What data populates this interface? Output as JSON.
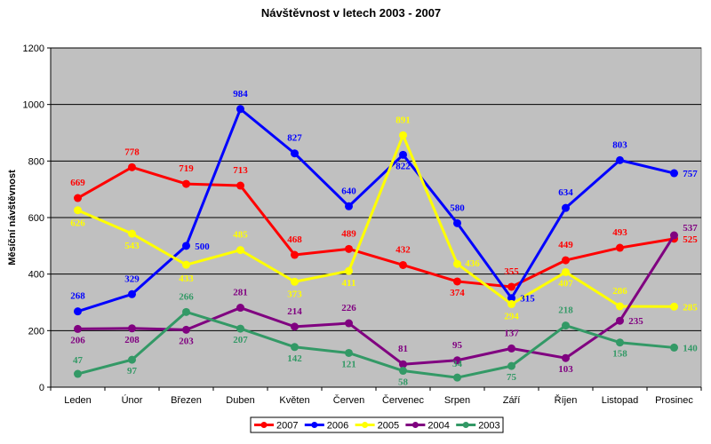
{
  "chart_data": {
    "type": "line",
    "title": "Návštěvnost v letech 2003  - 2007",
    "xlabel": "",
    "ylabel": "Měsíční návštěvnost",
    "ylim": [
      0,
      1200
    ],
    "yticks": [
      "0",
      "200",
      "400",
      "600",
      "800",
      "1000",
      "1200"
    ],
    "grid": true,
    "legend_position": "bottom",
    "categories": [
      "Leden",
      "Únor",
      "Březen",
      "Duben",
      "Květen",
      "Červen",
      "Červenec",
      "Srpen",
      "Září",
      "Říjen",
      "Listopad",
      "Prosinec"
    ],
    "series": [
      {
        "name": "2007",
        "color": "#ff0000",
        "values": [
          669,
          778,
          719,
          713,
          468,
          489,
          432,
          374,
          355,
          449,
          493,
          525
        ],
        "labels": [
          "669",
          "778",
          "719",
          "713",
          "468",
          "489",
          "432",
          "374",
          "355",
          "449",
          "493",
          "525"
        ]
      },
      {
        "name": "2006",
        "color": "#0000ff",
        "values": [
          268,
          329,
          500,
          984,
          827,
          640,
          822,
          580,
          315,
          634,
          803,
          757
        ],
        "labels": [
          "268",
          "329",
          "500",
          "984",
          "827",
          "640",
          "822",
          "580",
          "315",
          "634",
          "803",
          "757"
        ]
      },
      {
        "name": "2005",
        "color": "#ffff00",
        "values": [
          626,
          543,
          433,
          485,
          373,
          411,
          891,
          436,
          294,
          407,
          286,
          285
        ],
        "labels": [
          "626",
          "543",
          "433",
          "485",
          "373",
          "411",
          "891",
          "436",
          "294",
          "407",
          "286",
          "285"
        ]
      },
      {
        "name": "2004",
        "color": "#800080",
        "values": [
          206,
          208,
          203,
          281,
          214,
          226,
          81,
          95,
          137,
          103,
          235,
          537
        ],
        "labels": [
          "206",
          "208",
          "203",
          "281",
          "214",
          "226",
          "81",
          "95",
          "137",
          "103",
          "235",
          "537"
        ]
      },
      {
        "name": "2003",
        "color": "#339966",
        "values": [
          47,
          97,
          266,
          207,
          142,
          121,
          58,
          34,
          75,
          218,
          158,
          140
        ],
        "labels": [
          "47",
          "97",
          "266",
          "207",
          "142",
          "121",
          "58",
          "34",
          "75",
          "218",
          "158",
          "140"
        ]
      }
    ],
    "plot_background": "#c0c0c0",
    "label_color_2005": "#ffff00",
    "label_color_2003": "#339966"
  }
}
